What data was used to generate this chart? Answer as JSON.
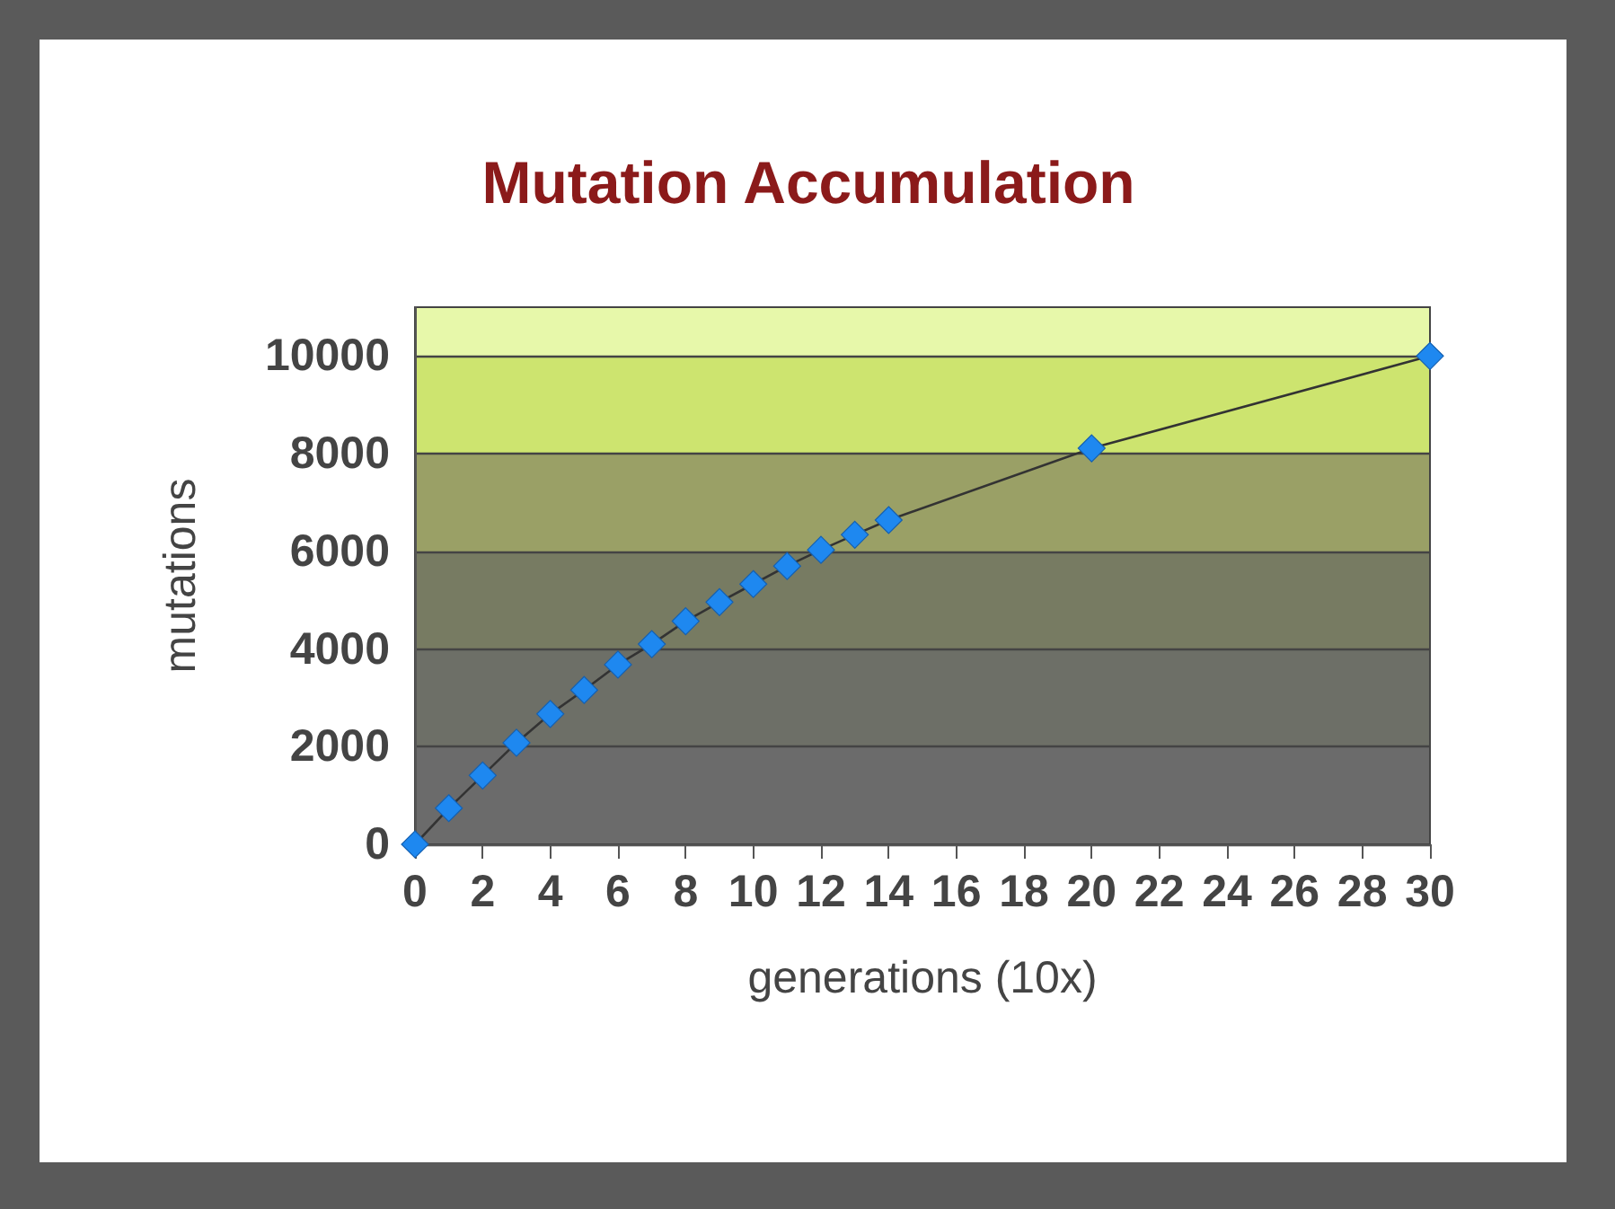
{
  "chart_data": {
    "type": "line",
    "title": "Mutation Accumulation",
    "xlabel": "generations (10x)",
    "ylabel": "mutations",
    "x": [
      0,
      1,
      2,
      3,
      4,
      5,
      6,
      7,
      8,
      9,
      10,
      11,
      12,
      13,
      14,
      20,
      30
    ],
    "series": [
      {
        "color": "#1e88f0",
        "values": [
          0,
          740,
          1410,
          2080,
          2670,
          3160,
          3680,
          4100,
          4570,
          4960,
          5330,
          5700,
          6030,
          6340,
          6640,
          8110,
          10000
        ]
      }
    ],
    "xlim": [
      0,
      30
    ],
    "xticks": [
      0,
      2,
      4,
      6,
      8,
      10,
      12,
      14,
      16,
      18,
      20,
      22,
      24,
      26,
      28,
      30
    ],
    "ylim": [
      0,
      11000
    ],
    "yticks": [
      0,
      2000,
      4000,
      6000,
      8000,
      10000
    ],
    "grid": "y",
    "marker": "diamond",
    "line_style": "solid"
  }
}
